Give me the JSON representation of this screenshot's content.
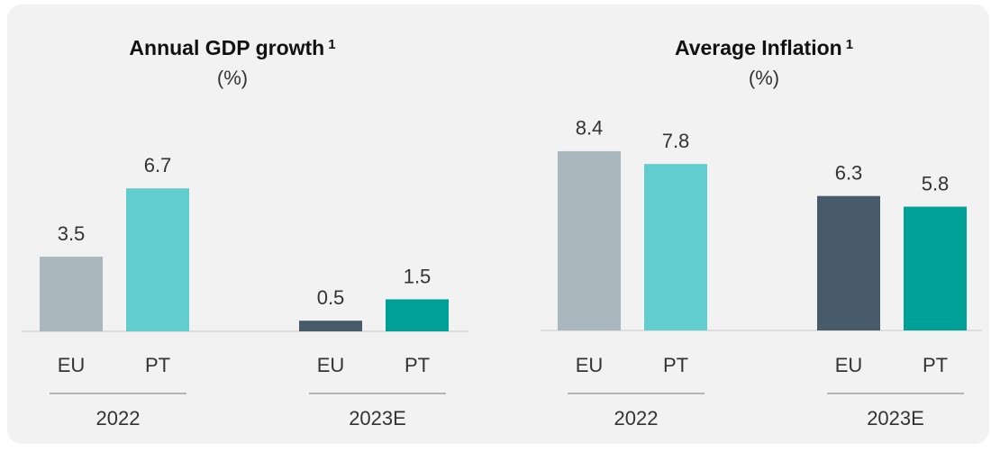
{
  "chart_data": [
    {
      "type": "bar",
      "title": "Annual GDP growth",
      "title_sup": "1",
      "subtitle": "(%)",
      "groups": [
        {
          "name": "2022",
          "categories": [
            "EU",
            "PT"
          ],
          "values": [
            3.5,
            6.7
          ],
          "colors": [
            "#aab7bf",
            "#62cdcf"
          ]
        },
        {
          "name": "2023E",
          "categories": [
            "EU",
            "PT"
          ],
          "values": [
            0.5,
            1.5
          ],
          "colors": [
            "#475b6b",
            "#00a096"
          ]
        }
      ]
    },
    {
      "type": "bar",
      "title": "Average Inflation",
      "title_sup": "1",
      "subtitle": "(%)",
      "groups": [
        {
          "name": "2022",
          "categories": [
            "EU",
            "PT"
          ],
          "values": [
            8.4,
            7.8
          ],
          "colors": [
            "#aab7bf",
            "#62cdcf"
          ]
        },
        {
          "name": "2023E",
          "categories": [
            "EU",
            "PT"
          ],
          "values": [
            6.3,
            5.8
          ],
          "colors": [
            "#475b6b",
            "#00a096"
          ]
        }
      ]
    }
  ]
}
